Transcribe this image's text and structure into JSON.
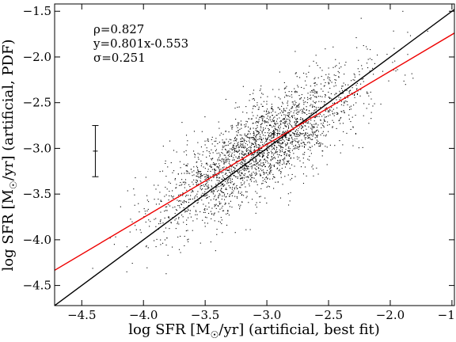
{
  "chart_data": {
    "type": "scatter",
    "xlabel": "log SFR [M☉/yr] (artificial, best fit)",
    "xlabel_parts": {
      "pre": "log SFR [M",
      "sub": "☉",
      "post": "/yr] (artificial, best fit)"
    },
    "ylabel": "log SFR [M☉/yr] (artificial, PDF)",
    "ylabel_parts": {
      "pre": "log SFR [M",
      "sub": "☉",
      "post": "/yr] (artificial, PDF)"
    },
    "xlim": [
      -4.72,
      -1.48
    ],
    "ylim": [
      -4.72,
      -1.42
    ],
    "xticks": [
      -4.5,
      -4.0,
      -3.5,
      -3.0,
      -2.5,
      -2.0,
      -1.5
    ],
    "xtick_labels": [
      "−4.5",
      "−4.0",
      "−3.5",
      "−3.0",
      "−2.5",
      "−2.0",
      "−1.5"
    ],
    "yticks": [
      -4.5,
      -4.0,
      -3.5,
      -3.0,
      -2.5,
      -2.0,
      -1.5
    ],
    "ytick_labels": [
      "−4.5",
      "−4.0",
      "−3.5",
      "−3.0",
      "−2.5",
      "−2.0",
      "−1.5"
    ],
    "grid": false,
    "annotations": [
      "ρ=0.827",
      "y=0.801x-0.553",
      "σ=0.251"
    ],
    "fit_line": {
      "slope": 0.801,
      "intercept": -0.553,
      "color": "#ee0000"
    },
    "identity_line": {
      "slope": 1,
      "intercept": 0,
      "color": "#000000"
    },
    "error_bar": {
      "x": -4.39,
      "y": -3.03,
      "half_height": 0.28
    },
    "scatter": {
      "color": "#000000",
      "approx_count": 2600,
      "x_center": -3.05,
      "x_sd": 0.42,
      "x_min": -4.45,
      "x_max": -1.55,
      "sigma": 0.251,
      "y_min": -4.45,
      "y_max": -1.5
    }
  }
}
